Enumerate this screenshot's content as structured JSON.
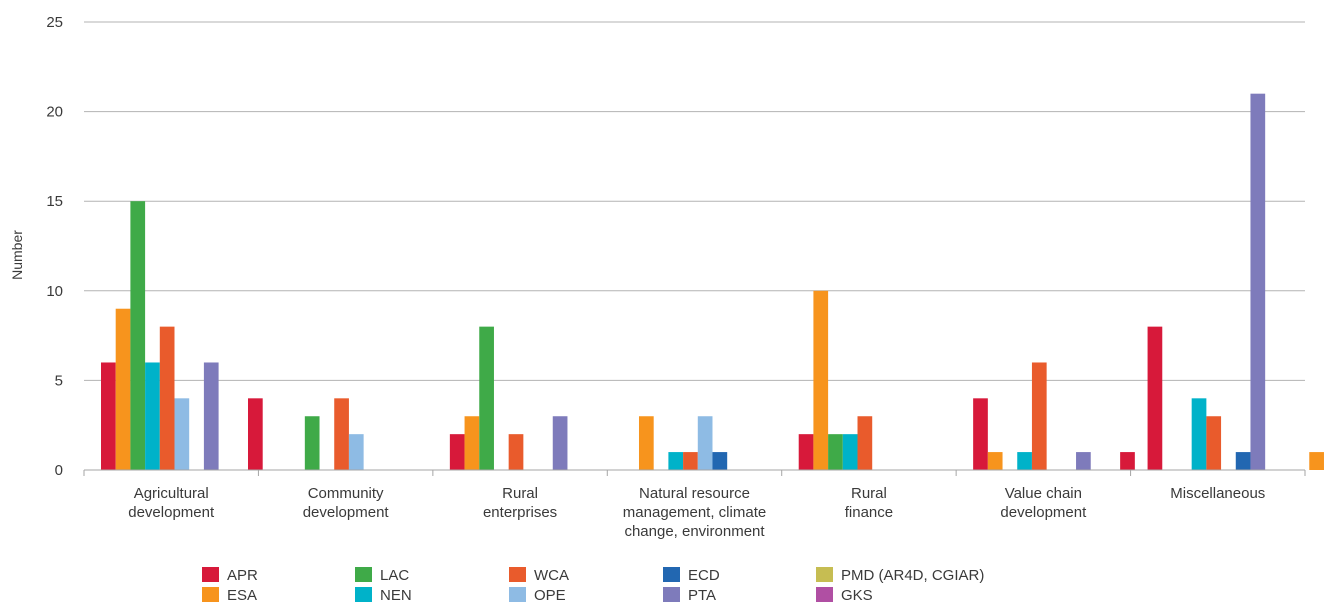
{
  "chart_data": {
    "type": "bar",
    "ylabel": "Number",
    "ylim": [
      0,
      25
    ],
    "yticks": [
      0,
      5,
      10,
      15,
      20,
      25
    ],
    "grid": true,
    "legend_position": "bottom",
    "categories": [
      [
        "Agricultural",
        "development"
      ],
      [
        "Community",
        "development"
      ],
      [
        "Rural",
        "enterprises"
      ],
      [
        "Natural resource",
        "management, climate",
        "change, environment"
      ],
      [
        "Rural",
        "finance"
      ],
      [
        "Value chain",
        "development"
      ],
      [
        "Miscellaneous"
      ]
    ],
    "series": [
      {
        "name": "APR",
        "color": "#d7193a",
        "values": [
          6,
          0,
          2,
          0,
          2,
          4,
          8
        ]
      },
      {
        "name": "ESA",
        "color": "#f7941d",
        "values": [
          9,
          0,
          3,
          3,
          10,
          1,
          0
        ]
      },
      {
        "name": "LAC",
        "color": "#3faa48",
        "values": [
          15,
          3,
          8,
          0,
          2,
          0,
          0
        ]
      },
      {
        "name": "NEN",
        "color": "#00b2c9",
        "values": [
          6,
          0,
          0,
          1,
          2,
          1,
          4
        ]
      },
      {
        "name": "WCA",
        "color": "#e95b2c",
        "values": [
          8,
          4,
          2,
          1,
          3,
          6,
          3
        ]
      },
      {
        "name": "OPE",
        "color": "#8ebbe4",
        "values": [
          4,
          2,
          0,
          3,
          0,
          0,
          0
        ]
      },
      {
        "name": "ECD",
        "color": "#2267b1",
        "values": [
          0,
          0,
          0,
          1,
          0,
          0,
          1
        ]
      },
      {
        "name": "PTA",
        "color": "#7e7bbb",
        "values": [
          6,
          0,
          3,
          0,
          0,
          1,
          21
        ]
      },
      {
        "name": "PMD (AR4D, CGIAR)",
        "color": "#c6bd52",
        "values": [
          0,
          0,
          0,
          0,
          0,
          0,
          0
        ]
      },
      {
        "name": "GKS",
        "color": "#b04fa3",
        "values": [
          0,
          0,
          0,
          0,
          0,
          0,
          0
        ]
      },
      {
        "name": "APR",
        "color": "#d7193a",
        "values": [
          4,
          0,
          0,
          0,
          0,
          1,
          0
        ],
        "legend": false
      },
      {
        "name": "ESA",
        "color": "#f7941d",
        "values": [
          0,
          0,
          0,
          0,
          0,
          0,
          1
        ],
        "legend": false
      }
    ]
  }
}
